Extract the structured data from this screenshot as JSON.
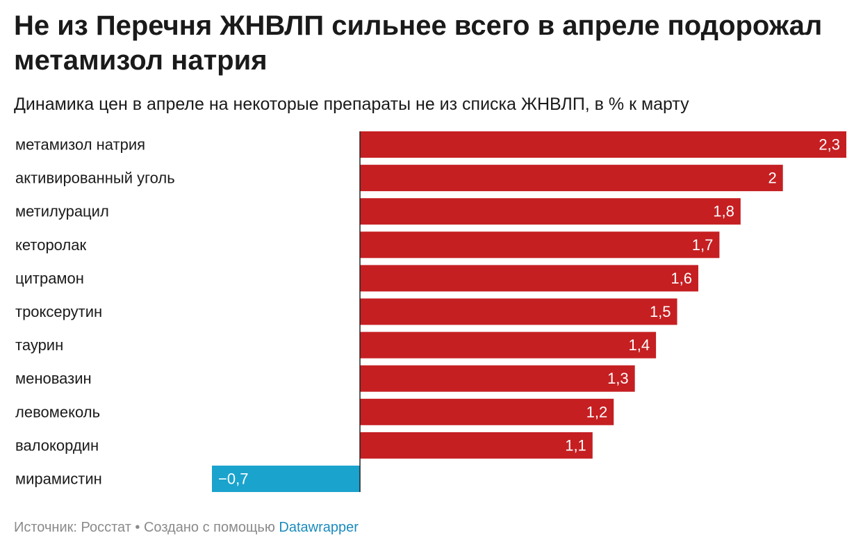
{
  "title": "Не из Перечня ЖНВЛП сильнее всего в апреле подорожал метамизол натрия",
  "subtitle": "Динамика цен в апреле на некоторые препараты не из списка ЖНВЛП, в % к марту",
  "footer": {
    "source": "Источник: Росстат • Создано с помощью",
    "link": "Datawrapper"
  },
  "colors": {
    "positive": "#c51f22",
    "negative": "#1aa3cd",
    "axis": "#222222",
    "link": "#1a8bbd"
  },
  "chart_data": {
    "type": "bar",
    "orientation": "horizontal",
    "categories": [
      "метамизол натрия",
      "активированный уголь",
      "метилурацил",
      "кеторолак",
      "цитрамон",
      "троксерутин",
      "таурин",
      "меновазин",
      "левомеколь",
      "валокордин",
      "мирамистин"
    ],
    "values": [
      2.3,
      2.0,
      1.8,
      1.7,
      1.6,
      1.5,
      1.4,
      1.3,
      1.2,
      1.1,
      -0.7
    ],
    "value_labels": [
      "2,3",
      "2",
      "1,8",
      "1,7",
      "1,6",
      "1,5",
      "1,4",
      "1,3",
      "1,2",
      "1,1",
      "−0,7"
    ],
    "xlim": [
      -0.7,
      2.3
    ],
    "grid": false,
    "legend": "none"
  }
}
